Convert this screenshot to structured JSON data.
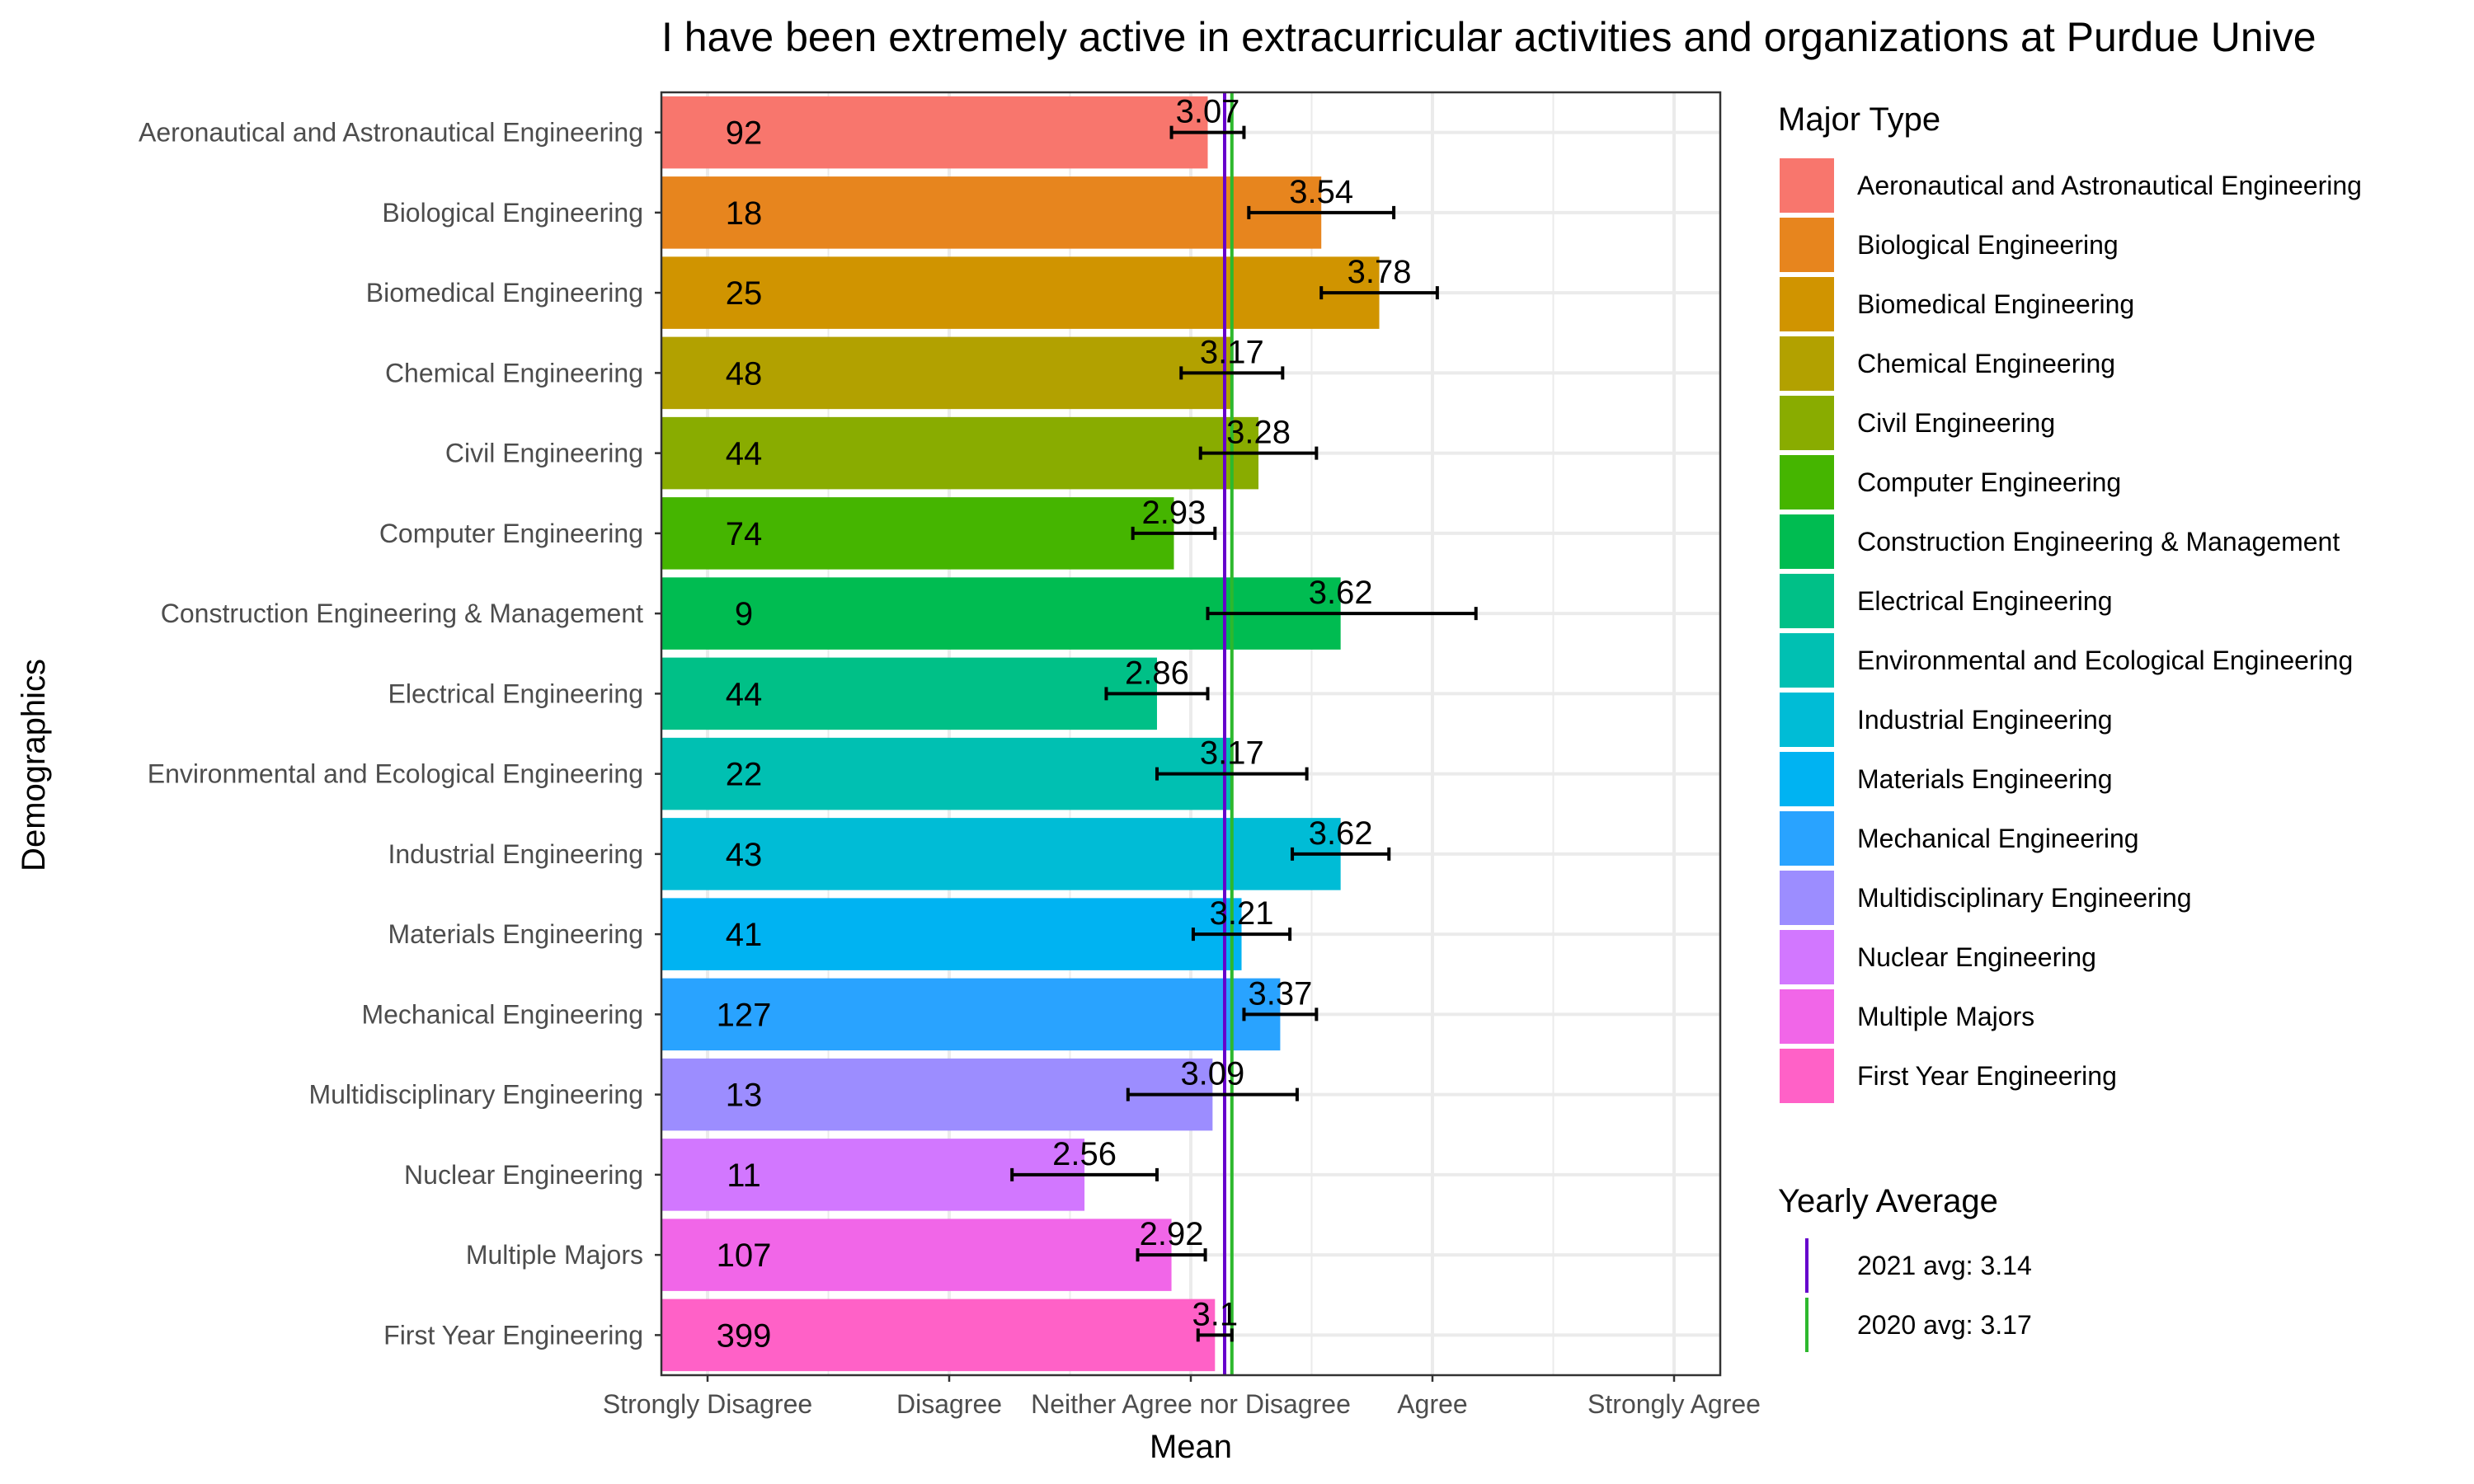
{
  "chart_data": {
    "type": "bar",
    "orientation": "horizontal",
    "title": "I have been extremely active in extracurricular activities and organizations at Purdue Unive",
    "xlabel": "Mean",
    "ylabel": "Demographics",
    "xlim": [
      1,
      5
    ],
    "x_ticks": [
      {
        "value": 1,
        "label": "Strongly Disagree"
      },
      {
        "value": 2,
        "label": "Disagree"
      },
      {
        "value": 3,
        "label": "Neither Agree nor Disagree"
      },
      {
        "value": 4,
        "label": "Agree"
      },
      {
        "value": 5,
        "label": "Strongly Agree"
      }
    ],
    "grid": true,
    "categories": [
      "Aeronautical and Astronautical Engineering",
      "Biological Engineering",
      "Biomedical Engineering",
      "Chemical Engineering",
      "Civil Engineering",
      "Computer Engineering",
      "Construction Engineering & Management",
      "Electrical Engineering",
      "Environmental and Ecological Engineering",
      "Industrial Engineering",
      "Materials Engineering",
      "Mechanical Engineering",
      "Multidisciplinary Engineering",
      "Nuclear Engineering",
      "Multiple Majors",
      "First Year Engineering"
    ],
    "values": [
      3.07,
      3.54,
      3.78,
      3.17,
      3.28,
      2.93,
      3.62,
      2.86,
      3.17,
      3.62,
      3.21,
      3.37,
      3.09,
      2.56,
      2.92,
      3.1
    ],
    "value_labels": [
      "3.07",
      "3.54",
      "3.78",
      "3.17",
      "3.28",
      "2.93",
      "3.62",
      "2.86",
      "3.17",
      "3.62",
      "3.21",
      "3.37",
      "3.09",
      "2.56",
      "2.92",
      "3.1"
    ],
    "counts": [
      "92",
      "18",
      "25",
      "48",
      "44",
      "74",
      "9",
      "44",
      "22",
      "43",
      "41",
      "127",
      "13",
      "11",
      "107",
      "399"
    ],
    "error_low": [
      2.92,
      3.24,
      3.54,
      2.96,
      3.04,
      2.76,
      3.07,
      2.65,
      2.86,
      3.42,
      3.01,
      3.22,
      2.74,
      2.26,
      2.78,
      3.03
    ],
    "error_high": [
      3.22,
      3.84,
      4.02,
      3.38,
      3.52,
      3.1,
      4.18,
      3.07,
      3.48,
      3.82,
      3.41,
      3.52,
      3.44,
      2.86,
      3.06,
      3.17
    ],
    "colors": [
      "#F8766D",
      "#E7851E",
      "#D09400",
      "#B2A100",
      "#89AC00",
      "#45B500",
      "#00BC51",
      "#00C087",
      "#00C0B2",
      "#00BCD6",
      "#00B3F2",
      "#29A3FF",
      "#9C8DFF",
      "#D277FF",
      "#F166E8",
      "#FF61C7"
    ],
    "reference_lines": [
      {
        "label": "2021 avg: 3.14",
        "value": 3.14,
        "color": "#6600CC"
      },
      {
        "label": "2020 avg: 3.17",
        "value": 3.17,
        "color": "#2DB82D"
      }
    ],
    "legend": {
      "placement": "right",
      "fill_title": "Major Type",
      "line_title": "Yearly Average"
    }
  }
}
